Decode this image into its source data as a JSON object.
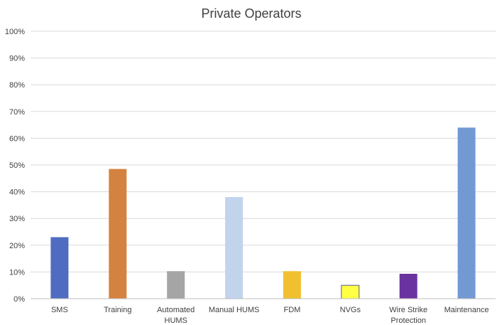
{
  "chart_data": {
    "type": "bar",
    "title": "Private Operators",
    "categories": [
      "SMS",
      "Training",
      "Automated HUMS",
      "Manual HUMS",
      "FDM",
      "NVGs",
      "Wire Strike Protection",
      "Maintenance"
    ],
    "category_lines": [
      [
        "SMS"
      ],
      [
        "Training"
      ],
      [
        "Automated",
        "HUMS"
      ],
      [
        "Manual HUMS"
      ],
      [
        "FDM"
      ],
      [
        "NVGs"
      ],
      [
        "Wire Strike",
        "Protection"
      ],
      [
        "Maintenance"
      ]
    ],
    "values": [
      0.23,
      0.485,
      0.103,
      0.38,
      0.103,
      0.05,
      0.093,
      0.64
    ],
    "colors": [
      "#4f6cc0",
      "#d4823f",
      "#a5a5a5",
      "#c2d3ec",
      "#f0c030",
      "#ffff44",
      "#6a329f",
      "#7399d3"
    ],
    "ylim": [
      0,
      1
    ],
    "yticks": [
      "0%",
      "10%",
      "20%",
      "30%",
      "40%",
      "50%",
      "60%",
      "70%",
      "80%",
      "90%",
      "100%"
    ],
    "grid": true,
    "legend": "none"
  }
}
